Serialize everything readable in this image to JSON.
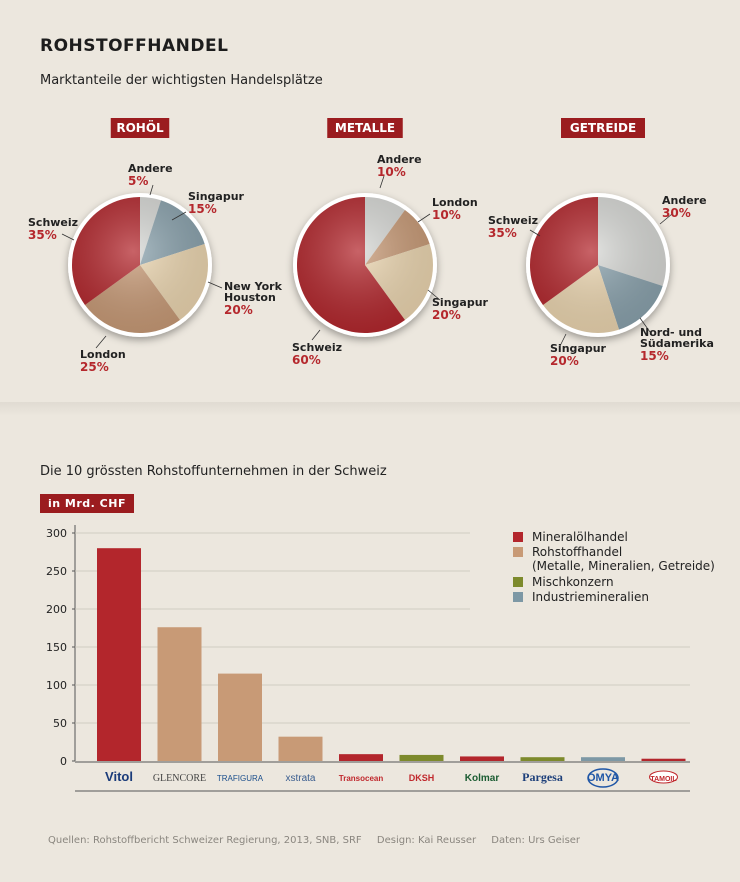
{
  "header": {
    "title": "ROHSTOFFHANDEL",
    "subtitle": "Marktanteile der wichtigsten Handelsplätze"
  },
  "colors": {
    "accent": "#9b1c1f",
    "percent": "#b5282d",
    "red": "#b3262c",
    "tan": "#c89a76",
    "cream": "#ecd6b0",
    "lightgray": "#d7d8d5",
    "bluegray": "#8aa2ad",
    "olive": "#7d8a2c",
    "industrial": "#7d98a5"
  },
  "chart_data": [
    {
      "type": "pie",
      "title": "ROHÖL",
      "slices": [
        {
          "label": "Andere",
          "value": 5
        },
        {
          "label": "Singapur",
          "value": 15
        },
        {
          "label": "New York Houston",
          "value": 20
        },
        {
          "label": "London",
          "value": 25
        },
        {
          "label": "Schweiz",
          "value": 35
        }
      ]
    },
    {
      "type": "pie",
      "title": "METALLE",
      "slices": [
        {
          "label": "Andere",
          "value": 10
        },
        {
          "label": "London",
          "value": 10
        },
        {
          "label": "Singapur",
          "value": 20
        },
        {
          "label": "Schweiz",
          "value": 60
        }
      ]
    },
    {
      "type": "pie",
      "title": "GETREIDE",
      "slices": [
        {
          "label": "Andere",
          "value": 30
        },
        {
          "label": "Nord- und Südamerika",
          "value": 15
        },
        {
          "label": "Singapur",
          "value": 20
        },
        {
          "label": "Schweiz",
          "value": 35
        }
      ]
    },
    {
      "type": "bar",
      "title": "Die 10 grössten Rohstoffunternehmen in der Schweiz",
      "ylabel": "in Mrd. CHF",
      "ylim": [
        0,
        300
      ],
      "yticks": [
        0,
        50,
        100,
        150,
        200,
        250,
        300
      ],
      "categories": [
        "Vitol",
        "Glencore",
        "Trafigura",
        "Xstrata",
        "Transocean",
        "DKSH",
        "Kolmar",
        "Pargesa",
        "Omya",
        "Tamoil"
      ],
      "values": [
        280,
        176,
        115,
        32,
        9,
        8,
        6,
        5,
        5,
        3
      ],
      "groups": [
        "Mineralölhandel",
        "Rohstoffhandel",
        "Rohstoffhandel",
        "Rohstoffhandel",
        "Mineralölhandel",
        "Mischkonzern",
        "Mineralölhandel",
        "Mischkonzern",
        "Industriemineralien",
        "Mineralölhandel"
      ],
      "legend": [
        {
          "label": "Mineralölhandel",
          "sub": ""
        },
        {
          "label": "Rohstoffhandel",
          "sub": "(Metalle, Mineralien, Getreide)"
        },
        {
          "label": "Mischkonzern",
          "sub": ""
        },
        {
          "label": "Industriemineralien",
          "sub": ""
        }
      ],
      "logos": [
        "Vitol",
        "GLENCORE",
        "TRAFIGURA",
        "xstrata",
        "Transocean",
        "DKSH",
        "Kolmar",
        "Pargesa",
        "OMYA",
        "TAMOIL"
      ]
    }
  ],
  "footer": {
    "sources": "Quellen: Rohstoffbericht Schweizer Regierung, 2013, SNB, SRF",
    "design": "Design: Kai Reusser",
    "data": "Daten: Urs Geiser"
  }
}
